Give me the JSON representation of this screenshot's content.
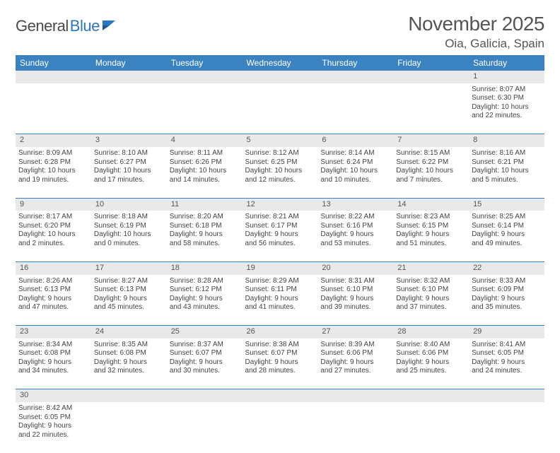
{
  "brand": {
    "part1": "General",
    "part2": "Blue",
    "icon_color": "#2b78c2",
    "text_color": "#4a4a4a"
  },
  "title": {
    "month": "November 2025",
    "location": "Oia, Galicia, Spain"
  },
  "colors": {
    "header_bg": "#3b83c0",
    "daynum_bg": "#e9e9e9",
    "border": "#3b83c0"
  },
  "day_headers": [
    "Sunday",
    "Monday",
    "Tuesday",
    "Wednesday",
    "Thursday",
    "Friday",
    "Saturday"
  ],
  "weeks": [
    {
      "nums": [
        "",
        "",
        "",
        "",
        "",
        "",
        "1"
      ],
      "cells": [
        null,
        null,
        null,
        null,
        null,
        null,
        {
          "sunrise": "Sunrise: 8:07 AM",
          "sunset": "Sunset: 6:30 PM",
          "d1": "Daylight: 10 hours",
          "d2": "and 22 minutes."
        }
      ]
    },
    {
      "nums": [
        "2",
        "3",
        "4",
        "5",
        "6",
        "7",
        "8"
      ],
      "cells": [
        {
          "sunrise": "Sunrise: 8:09 AM",
          "sunset": "Sunset: 6:28 PM",
          "d1": "Daylight: 10 hours",
          "d2": "and 19 minutes."
        },
        {
          "sunrise": "Sunrise: 8:10 AM",
          "sunset": "Sunset: 6:27 PM",
          "d1": "Daylight: 10 hours",
          "d2": "and 17 minutes."
        },
        {
          "sunrise": "Sunrise: 8:11 AM",
          "sunset": "Sunset: 6:26 PM",
          "d1": "Daylight: 10 hours",
          "d2": "and 14 minutes."
        },
        {
          "sunrise": "Sunrise: 8:12 AM",
          "sunset": "Sunset: 6:25 PM",
          "d1": "Daylight: 10 hours",
          "d2": "and 12 minutes."
        },
        {
          "sunrise": "Sunrise: 8:14 AM",
          "sunset": "Sunset: 6:24 PM",
          "d1": "Daylight: 10 hours",
          "d2": "and 10 minutes."
        },
        {
          "sunrise": "Sunrise: 8:15 AM",
          "sunset": "Sunset: 6:22 PM",
          "d1": "Daylight: 10 hours",
          "d2": "and 7 minutes."
        },
        {
          "sunrise": "Sunrise: 8:16 AM",
          "sunset": "Sunset: 6:21 PM",
          "d1": "Daylight: 10 hours",
          "d2": "and 5 minutes."
        }
      ]
    },
    {
      "nums": [
        "9",
        "10",
        "11",
        "12",
        "13",
        "14",
        "15"
      ],
      "cells": [
        {
          "sunrise": "Sunrise: 8:17 AM",
          "sunset": "Sunset: 6:20 PM",
          "d1": "Daylight: 10 hours",
          "d2": "and 2 minutes."
        },
        {
          "sunrise": "Sunrise: 8:18 AM",
          "sunset": "Sunset: 6:19 PM",
          "d1": "Daylight: 10 hours",
          "d2": "and 0 minutes."
        },
        {
          "sunrise": "Sunrise: 8:20 AM",
          "sunset": "Sunset: 6:18 PM",
          "d1": "Daylight: 9 hours",
          "d2": "and 58 minutes."
        },
        {
          "sunrise": "Sunrise: 8:21 AM",
          "sunset": "Sunset: 6:17 PM",
          "d1": "Daylight: 9 hours",
          "d2": "and 56 minutes."
        },
        {
          "sunrise": "Sunrise: 8:22 AM",
          "sunset": "Sunset: 6:16 PM",
          "d1": "Daylight: 9 hours",
          "d2": "and 53 minutes."
        },
        {
          "sunrise": "Sunrise: 8:23 AM",
          "sunset": "Sunset: 6:15 PM",
          "d1": "Daylight: 9 hours",
          "d2": "and 51 minutes."
        },
        {
          "sunrise": "Sunrise: 8:25 AM",
          "sunset": "Sunset: 6:14 PM",
          "d1": "Daylight: 9 hours",
          "d2": "and 49 minutes."
        }
      ]
    },
    {
      "nums": [
        "16",
        "17",
        "18",
        "19",
        "20",
        "21",
        "22"
      ],
      "cells": [
        {
          "sunrise": "Sunrise: 8:26 AM",
          "sunset": "Sunset: 6:13 PM",
          "d1": "Daylight: 9 hours",
          "d2": "and 47 minutes."
        },
        {
          "sunrise": "Sunrise: 8:27 AM",
          "sunset": "Sunset: 6:13 PM",
          "d1": "Daylight: 9 hours",
          "d2": "and 45 minutes."
        },
        {
          "sunrise": "Sunrise: 8:28 AM",
          "sunset": "Sunset: 6:12 PM",
          "d1": "Daylight: 9 hours",
          "d2": "and 43 minutes."
        },
        {
          "sunrise": "Sunrise: 8:29 AM",
          "sunset": "Sunset: 6:11 PM",
          "d1": "Daylight: 9 hours",
          "d2": "and 41 minutes."
        },
        {
          "sunrise": "Sunrise: 8:31 AM",
          "sunset": "Sunset: 6:10 PM",
          "d1": "Daylight: 9 hours",
          "d2": "and 39 minutes."
        },
        {
          "sunrise": "Sunrise: 8:32 AM",
          "sunset": "Sunset: 6:10 PM",
          "d1": "Daylight: 9 hours",
          "d2": "and 37 minutes."
        },
        {
          "sunrise": "Sunrise: 8:33 AM",
          "sunset": "Sunset: 6:09 PM",
          "d1": "Daylight: 9 hours",
          "d2": "and 35 minutes."
        }
      ]
    },
    {
      "nums": [
        "23",
        "24",
        "25",
        "26",
        "27",
        "28",
        "29"
      ],
      "cells": [
        {
          "sunrise": "Sunrise: 8:34 AM",
          "sunset": "Sunset: 6:08 PM",
          "d1": "Daylight: 9 hours",
          "d2": "and 34 minutes."
        },
        {
          "sunrise": "Sunrise: 8:35 AM",
          "sunset": "Sunset: 6:08 PM",
          "d1": "Daylight: 9 hours",
          "d2": "and 32 minutes."
        },
        {
          "sunrise": "Sunrise: 8:37 AM",
          "sunset": "Sunset: 6:07 PM",
          "d1": "Daylight: 9 hours",
          "d2": "and 30 minutes."
        },
        {
          "sunrise": "Sunrise: 8:38 AM",
          "sunset": "Sunset: 6:07 PM",
          "d1": "Daylight: 9 hours",
          "d2": "and 28 minutes."
        },
        {
          "sunrise": "Sunrise: 8:39 AM",
          "sunset": "Sunset: 6:06 PM",
          "d1": "Daylight: 9 hours",
          "d2": "and 27 minutes."
        },
        {
          "sunrise": "Sunrise: 8:40 AM",
          "sunset": "Sunset: 6:06 PM",
          "d1": "Daylight: 9 hours",
          "d2": "and 25 minutes."
        },
        {
          "sunrise": "Sunrise: 8:41 AM",
          "sunset": "Sunset: 6:05 PM",
          "d1": "Daylight: 9 hours",
          "d2": "and 24 minutes."
        }
      ]
    },
    {
      "nums": [
        "30",
        "",
        "",
        "",
        "",
        "",
        ""
      ],
      "cells": [
        {
          "sunrise": "Sunrise: 8:42 AM",
          "sunset": "Sunset: 6:05 PM",
          "d1": "Daylight: 9 hours",
          "d2": "and 22 minutes."
        },
        null,
        null,
        null,
        null,
        null,
        null
      ],
      "last": true
    }
  ]
}
